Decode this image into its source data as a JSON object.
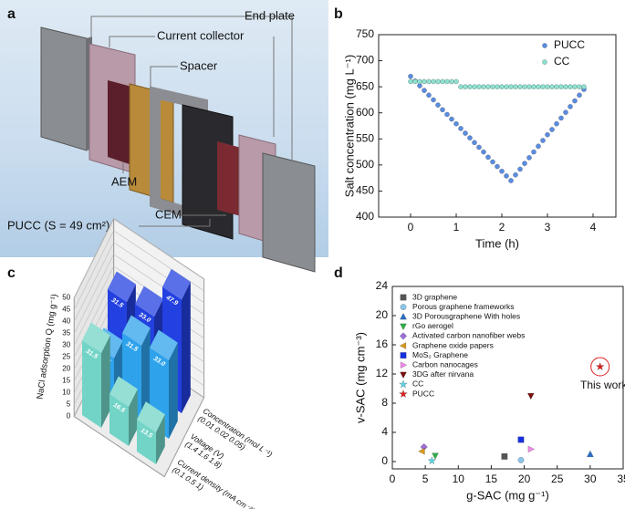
{
  "panel_labels": [
    "a",
    "b",
    "c",
    "d"
  ],
  "diagram": {
    "labels": [
      "End plate",
      "Current collector",
      "Spacer",
      "AEM",
      "CEM",
      "PUCC (S = 49 cm²)"
    ]
  },
  "chart_data": [
    {
      "type": "scatter",
      "xlabel": "Time (h)",
      "ylabel": "Salt concentration (mg L⁻¹)",
      "xlim": [
        -0.7,
        4.5
      ],
      "xticks": [
        0,
        1,
        2,
        3,
        4
      ],
      "ylim": [
        400,
        750
      ],
      "yticks": [
        400,
        450,
        500,
        550,
        600,
        650,
        700,
        750
      ],
      "legend": "upper right",
      "series": [
        {
          "name": "PUCC",
          "color": "#5b8de0",
          "marker": "circle",
          "x": [
            0,
            0.1,
            0.2,
            0.3,
            0.4,
            0.5,
            0.6,
            0.7,
            0.8,
            0.9,
            1.0,
            1.1,
            1.2,
            1.3,
            1.4,
            1.5,
            1.6,
            1.7,
            1.8,
            1.9,
            2.0,
            2.1,
            2.2,
            2.3,
            2.4,
            2.5,
            2.6,
            2.7,
            2.8,
            2.9,
            3.0,
            3.1,
            3.2,
            3.3,
            3.4,
            3.5,
            3.6,
            3.7,
            3.8
          ],
          "values": [
            670,
            661,
            652,
            643,
            634,
            625,
            615,
            606,
            597,
            588,
            579,
            570,
            561,
            552,
            543,
            534,
            525,
            515,
            506,
            497,
            488,
            479,
            470,
            481,
            492,
            503,
            514,
            525,
            536,
            547,
            558,
            568,
            579,
            590,
            601,
            612,
            623,
            634,
            645
          ]
        },
        {
          "name": "CC",
          "color": "#8fe0cf",
          "marker": "circle",
          "x": [
            0,
            0.1,
            0.2,
            0.3,
            0.4,
            0.5,
            0.6,
            0.7,
            0.8,
            0.9,
            1.0,
            1.1,
            1.2,
            1.3,
            1.4,
            1.5,
            1.6,
            1.7,
            1.8,
            1.9,
            2.0,
            2.1,
            2.2,
            2.3,
            2.4,
            2.5,
            2.6,
            2.7,
            2.8,
            2.9,
            3.0,
            3.1,
            3.2,
            3.3,
            3.4,
            3.5,
            3.6,
            3.7,
            3.8
          ],
          "values": [
            660,
            660,
            660,
            660,
            660,
            660,
            660,
            660,
            660,
            660,
            660,
            650,
            650,
            650,
            650,
            650,
            650,
            650,
            650,
            650,
            650,
            650,
            650,
            650,
            650,
            650,
            650,
            650,
            650,
            650,
            650,
            650,
            650,
            650,
            650,
            650,
            650,
            650,
            650
          ]
        }
      ]
    },
    {
      "type": "bar3d",
      "zlabel": "NaCl adsorption Q (mg g⁻¹)",
      "zlim": [
        0,
        50
      ],
      "zticks": [
        0,
        5,
        10,
        15,
        20,
        25,
        30,
        35,
        40,
        45,
        50
      ],
      "series": [
        {
          "name": "Concentration (mol L⁻¹)",
          "categories_label": "(0.01  0.02  0.05)",
          "color": "#2340e0",
          "values": [
            31.5,
            33.0,
            47.9
          ],
          "value_labels": [
            "31.5",
            "33.0",
            "47.9"
          ]
        },
        {
          "name": "Voltage (V)",
          "categories_label": "(1.4  1.6  1.8)",
          "color": "#2ea3ec",
          "values": [
            18.5,
            31.5,
            33.0
          ],
          "value_labels": [
            "18.5",
            "31.5",
            "33.0"
          ]
        },
        {
          "name": "Current density (mA cm⁻²)",
          "categories_label": "(0.1   0.5   1)",
          "color": "#72d4c6",
          "values": [
            31.5,
            16.5,
            13.5
          ],
          "value_labels": [
            "31.5",
            "16.5",
            "13.5"
          ]
        }
      ]
    },
    {
      "type": "scatter",
      "xlabel": "g-SAC (mg g⁻¹)",
      "ylabel": "v-SAC (mg cm⁻³)",
      "xlim": [
        0,
        35
      ],
      "xticks": [
        0,
        5,
        10,
        15,
        20,
        25,
        30,
        35
      ],
      "ylim": [
        -1,
        24
      ],
      "yticks": [
        0,
        4,
        8,
        12,
        16,
        20,
        24
      ],
      "legend": "upper left",
      "annotation": "This work",
      "series": [
        {
          "name": "3D graphene",
          "color": "#555555",
          "marker": "square",
          "x": [
            17
          ],
          "values": [
            0.7
          ]
        },
        {
          "name": "Porous graphene frameworks",
          "color": "#8cc4e8",
          "marker": "circle",
          "x": [
            19.5
          ],
          "values": [
            0.2
          ]
        },
        {
          "name": "3D Porousgraphene With holes",
          "color": "#2a6fc9",
          "marker": "triangle-up",
          "x": [
            30
          ],
          "values": [
            1
          ]
        },
        {
          "name": "rGo aerogel",
          "color": "#2fae4a",
          "marker": "triangle-down",
          "x": [
            6.5
          ],
          "values": [
            0.8
          ]
        },
        {
          "name": "Activated carbon nanofiber  webs",
          "color": "#9b6fd6",
          "marker": "diamond",
          "x": [
            4.8
          ],
          "values": [
            2
          ]
        },
        {
          "name": "Graphene oxide papers",
          "color": "#d99a1e",
          "marker": "triangle-left",
          "x": [
            4.5
          ],
          "values": [
            1.4
          ]
        },
        {
          "name": "MoS₂ Graphene",
          "color": "#1530e0",
          "marker": "square",
          "x": [
            19.5
          ],
          "values": [
            3
          ]
        },
        {
          "name": "Carbon nanocages",
          "color": "#f08ae8",
          "marker": "triangle-right",
          "x": [
            21
          ],
          "values": [
            1.7
          ]
        },
        {
          "name": "3DG after nirvana",
          "color": "#7a1010",
          "marker": "triangle-down",
          "x": [
            21
          ],
          "values": [
            9
          ]
        },
        {
          "name": "CC",
          "color": "#5fd6e6",
          "marker": "star",
          "x": [
            6
          ],
          "values": [
            0.1
          ]
        },
        {
          "name": "PUCC",
          "color": "#e02020",
          "marker": "star",
          "x": [
            31.5
          ],
          "values": [
            13
          ]
        }
      ]
    }
  ]
}
